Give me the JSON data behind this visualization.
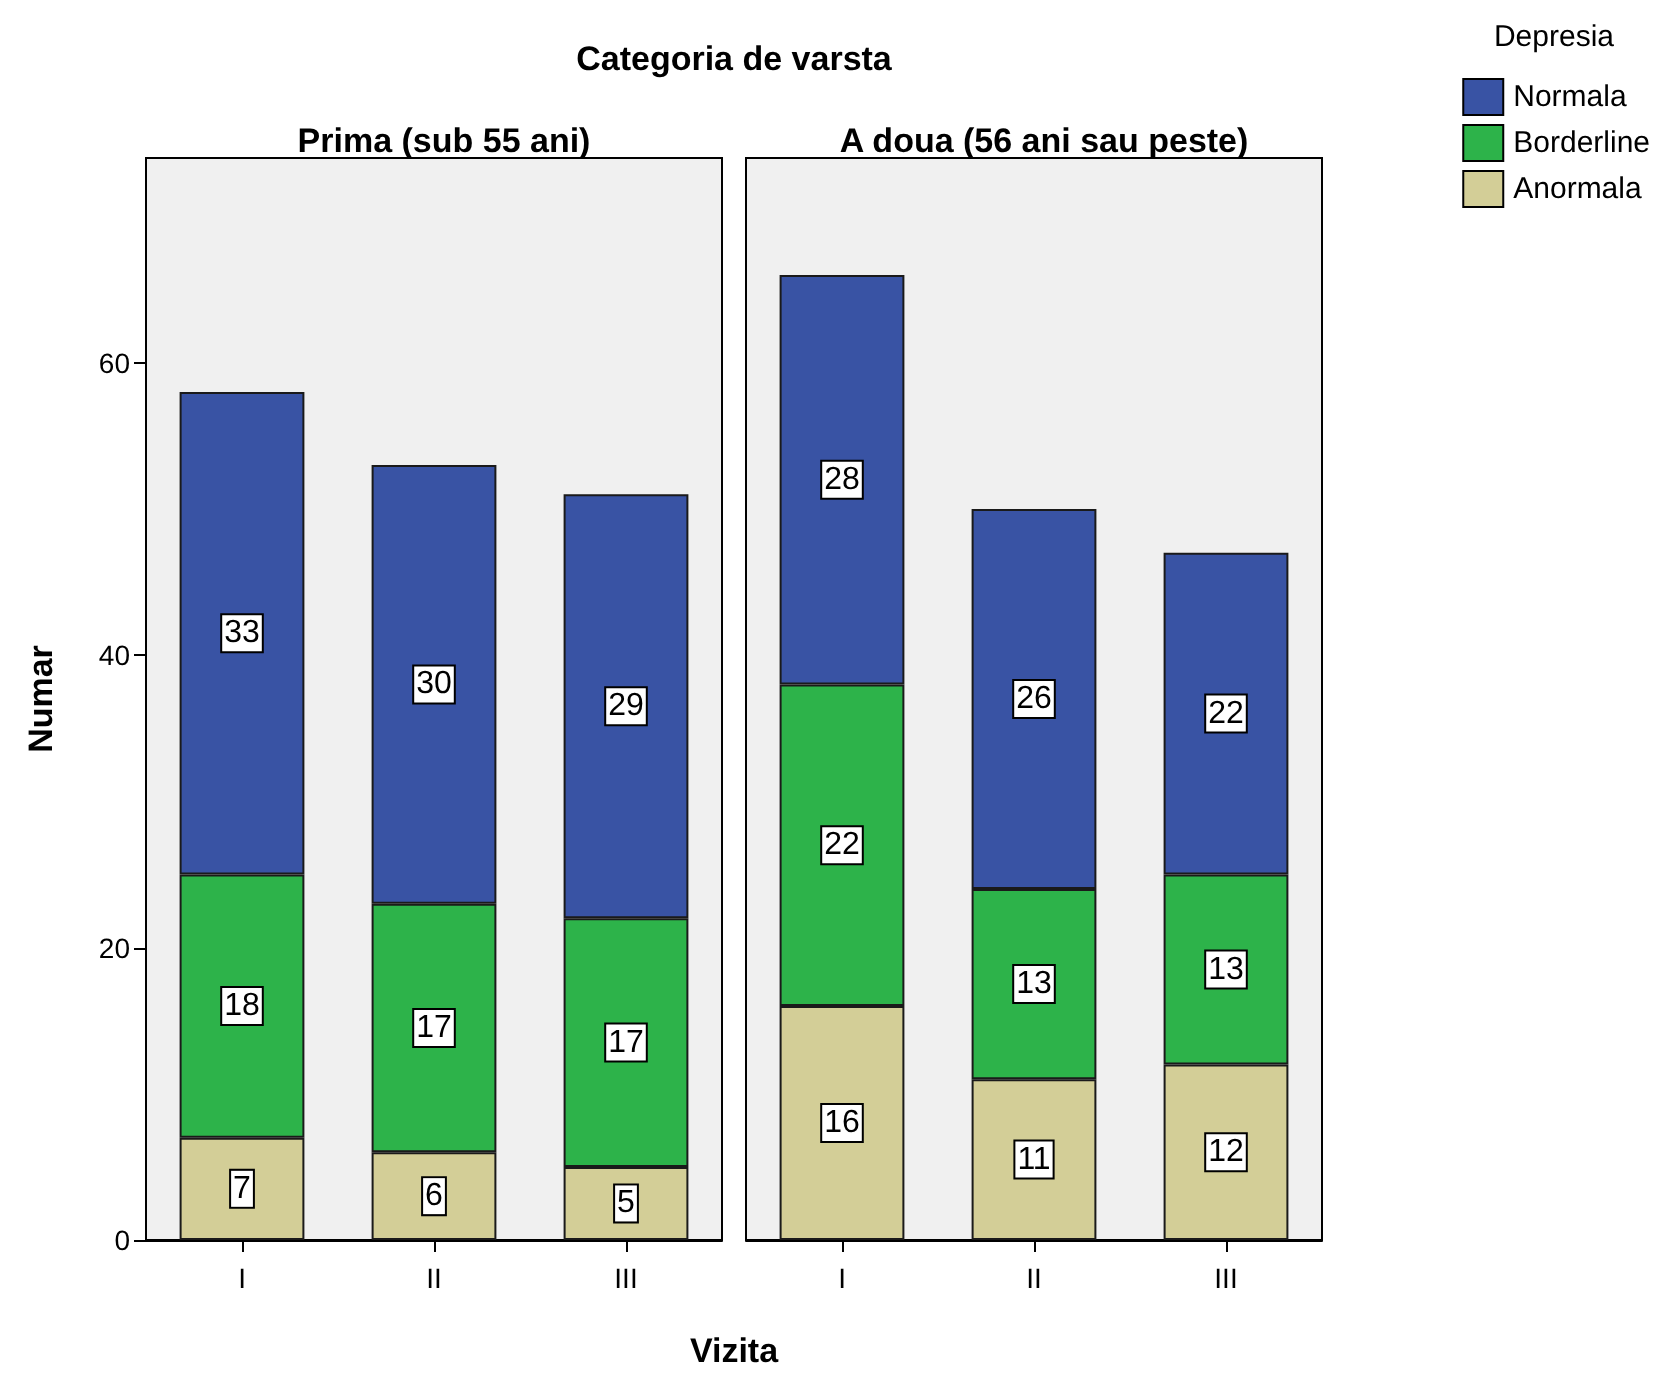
{
  "chart_data": [
    {
      "type": "bar",
      "stacked": true,
      "title": "Categoria de varsta",
      "subtitle": "Prima (sub 55 ani)",
      "xlabel": "Vizita",
      "ylabel": "Numar",
      "categories": [
        "I",
        "II",
        "III"
      ],
      "series": [
        {
          "color": "#d3ce97",
          "values": [
            7,
            6,
            5
          ]
        },
        {
          "color": "#2db34a",
          "values": [
            18,
            17,
            17
          ]
        },
        {
          "color": "#3953a4",
          "values": [
            33,
            30,
            29
          ]
        }
      ],
      "ylim": [
        0,
        74
      ],
      "yticks": [
        0,
        20,
        40,
        60
      ],
      "data_labels": true,
      "grid": false,
      "legend": false
    },
    {
      "type": "bar",
      "stacked": true,
      "subtitle": "A doua (56 ani sau peste)",
      "categories": [
        "I",
        "II",
        "III"
      ],
      "series": [
        {
          "name": "Anormala",
          "color": "#d3ce97",
          "values": [
            16,
            11,
            12
          ]
        },
        {
          "name": "Borderline",
          "color": "#2db34a",
          "values": [
            22,
            13,
            13
          ]
        },
        {
          "name": "Normala",
          "color": "#3953a4",
          "values": [
            28,
            26,
            22
          ]
        }
      ],
      "ylim": [
        0,
        74
      ],
      "yticks": [
        0,
        20,
        40,
        60
      ],
      "tick_labels": "x",
      "data_labels": true,
      "grid": false,
      "legend": "top right",
      "legend_title": "Depresia"
    }
  ]
}
